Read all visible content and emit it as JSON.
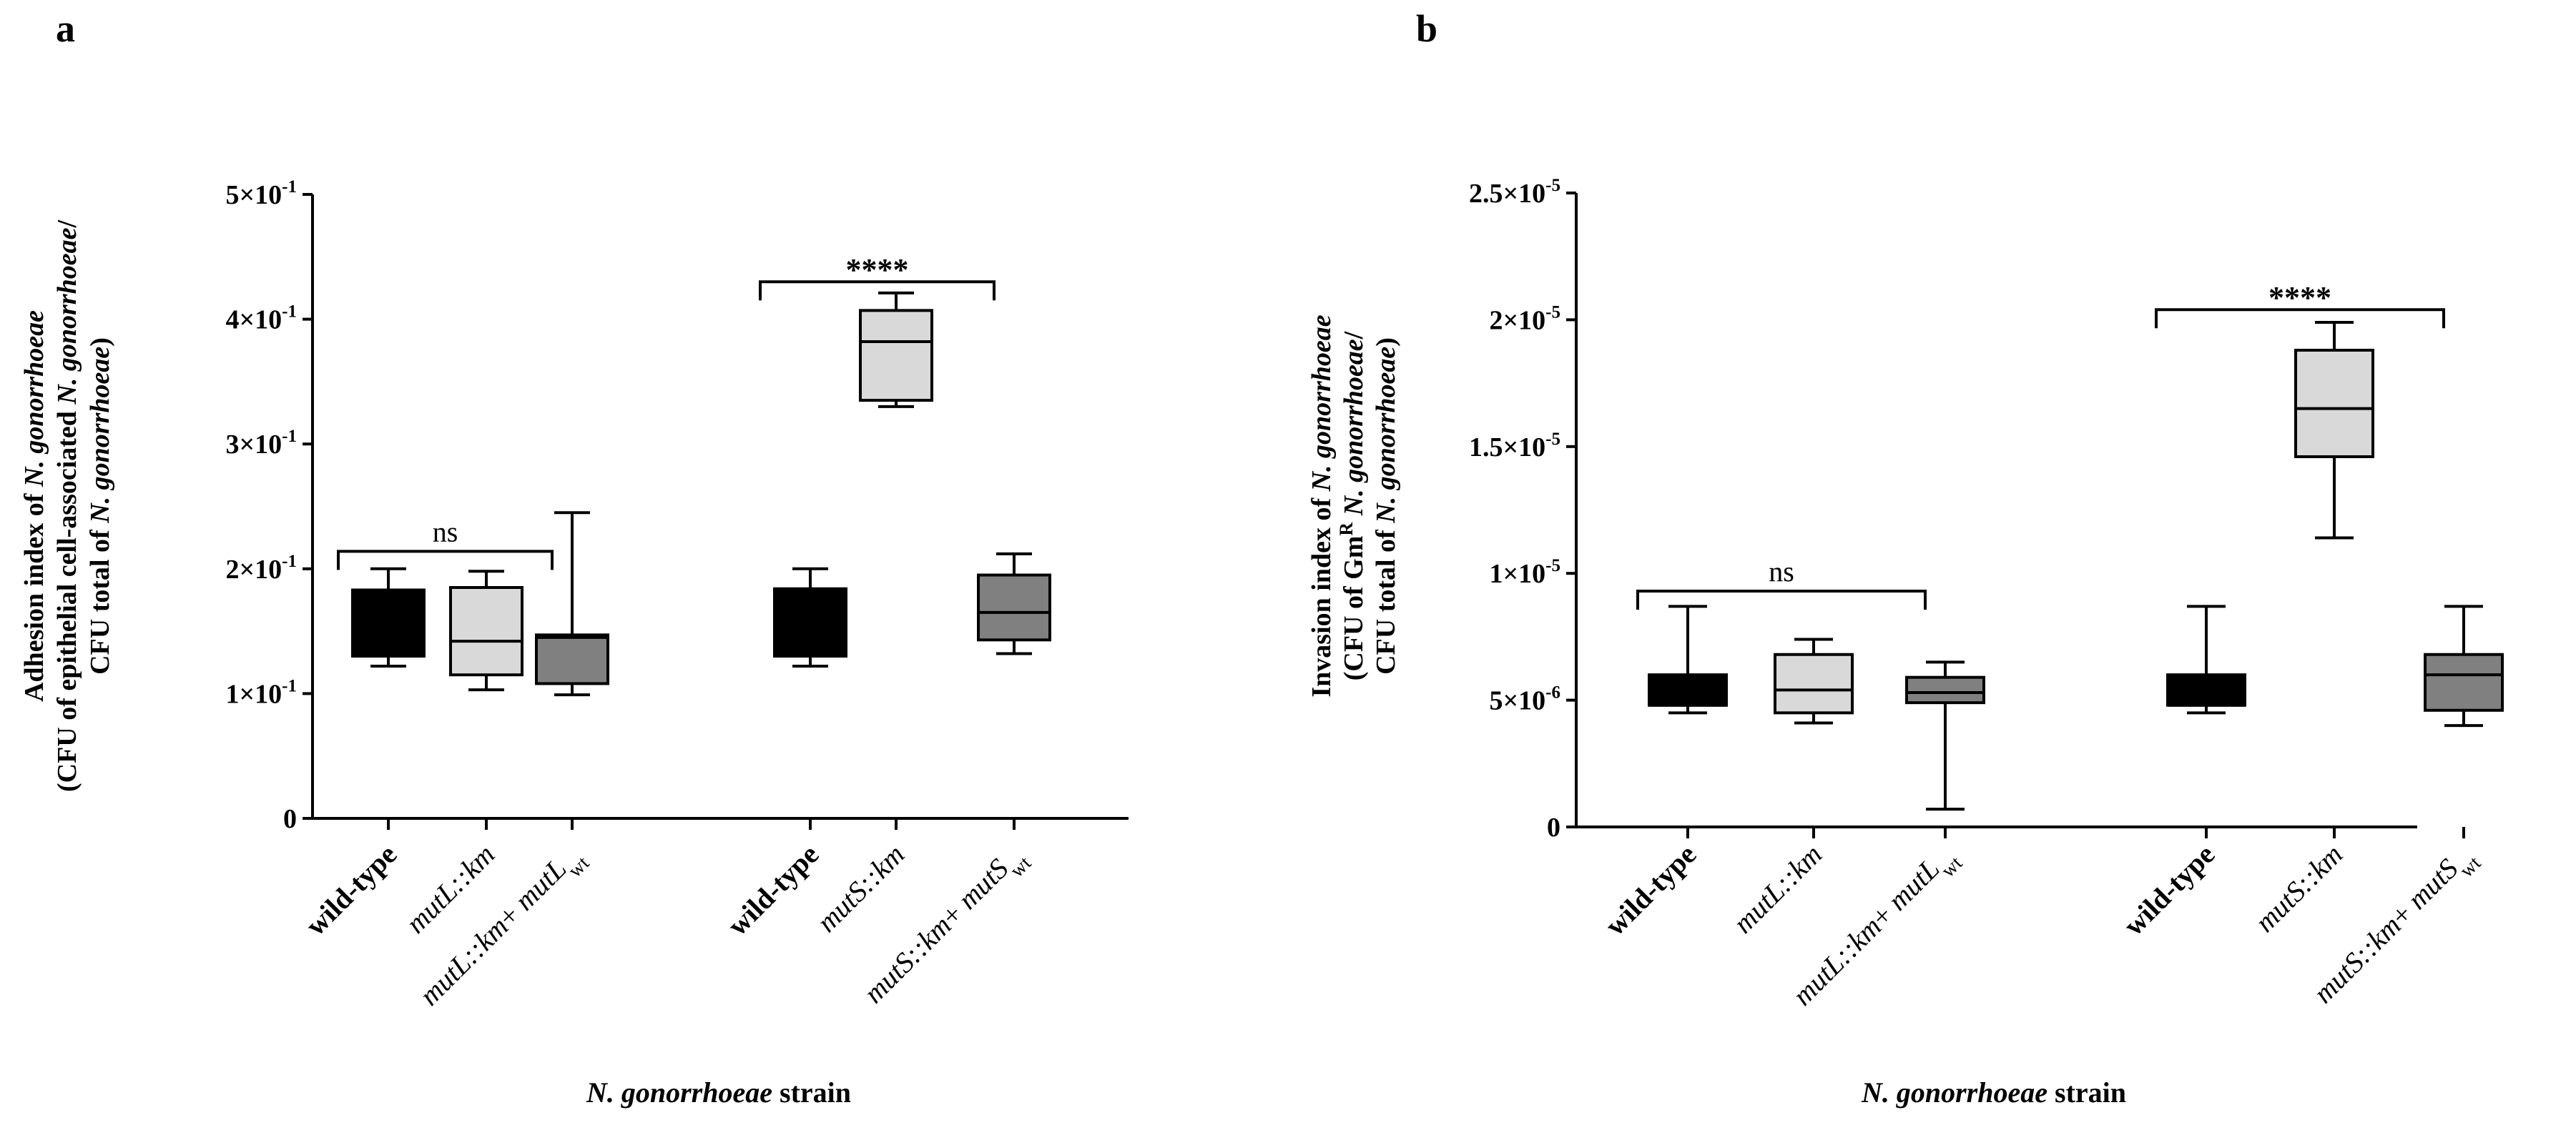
{
  "chart_data": [
    {
      "panel": "a",
      "type": "box",
      "ylabel_lines": [
        {
          "runs": [
            {
              "t": "Adhesion index of ",
              "i": false
            },
            {
              "t": "N. gonorrhoeae",
              "i": true
            }
          ]
        },
        {
          "runs": [
            {
              "t": "(CFU of epithelial cell-associated ",
              "i": false
            },
            {
              "t": "N. gonorrhoeae",
              "i": true
            },
            {
              "t": "/",
              "i": false
            }
          ]
        },
        {
          "runs": [
            {
              "t": "CFU total of ",
              "i": false
            },
            {
              "t": "N. gonorrhoeae",
              "i": true
            },
            {
              "t": ")",
              "i": false
            }
          ]
        }
      ],
      "xlabel": {
        "runs": [
          {
            "t": "N. gonorrhoeae",
            "i": true
          },
          {
            "t": " strain",
            "i": false
          }
        ]
      },
      "ylim": [
        0,
        0.5
      ],
      "yticks": [
        {
          "v": 0,
          "m": "0",
          "e": ""
        },
        {
          "v": 0.1,
          "m": "1×10",
          "e": "-1"
        },
        {
          "v": 0.2,
          "m": "2×10",
          "e": "-1"
        },
        {
          "v": 0.3,
          "m": "3×10",
          "e": "-1"
        },
        {
          "v": 0.4,
          "m": "4×10",
          "e": "-1"
        },
        {
          "v": 0.5,
          "m": "5×10",
          "e": "-1"
        }
      ],
      "categories": [
        {
          "runs": [
            {
              "t": "wild-type",
              "s": "b"
            }
          ]
        },
        {
          "runs": [
            {
              "t": "mutL::km",
              "s": "i"
            }
          ]
        },
        {
          "runs": [
            {
              "t": "mutL::km",
              "s": "i"
            },
            {
              "t": "+ ",
              "s": "n"
            },
            {
              "t": "mutL",
              "s": "i"
            },
            {
              "t": "wt",
              "s": "sub"
            }
          ]
        },
        {
          "runs": [
            {
              "t": "wild-type",
              "s": "b"
            }
          ]
        },
        {
          "runs": [
            {
              "t": "mutS::km",
              "s": "i"
            }
          ]
        },
        {
          "runs": [
            {
              "t": "mutS::km",
              "s": "i"
            },
            {
              "t": "+ ",
              "s": "n"
            },
            {
              "t": "mutS",
              "s": "i"
            },
            {
              "t": "wt",
              "s": "sub"
            }
          ]
        }
      ],
      "boxes": [
        {
          "min": 0.122,
          "q1": 0.13,
          "median": 0.13,
          "q3": 0.183,
          "max": 0.2,
          "color": "#000000"
        },
        {
          "min": 0.103,
          "q1": 0.115,
          "median": 0.142,
          "q3": 0.185,
          "max": 0.198,
          "color": "#d9d9d9"
        },
        {
          "min": 0.099,
          "q1": 0.108,
          "median": 0.145,
          "q3": 0.147,
          "max": 0.245,
          "color": "#808080"
        },
        {
          "min": 0.122,
          "q1": 0.13,
          "median": 0.13,
          "q3": 0.184,
          "max": 0.2,
          "color": "#000000"
        },
        {
          "min": 0.33,
          "q1": 0.335,
          "median": 0.382,
          "q3": 0.407,
          "max": 0.421,
          "color": "#d9d9d9"
        },
        {
          "min": 0.132,
          "q1": 0.143,
          "median": 0.165,
          "q3": 0.195,
          "max": 0.212,
          "color": "#808080"
        }
      ],
      "brackets": [
        {
          "from": 0,
          "to": 2,
          "value": 0.214,
          "label": "ns"
        },
        {
          "from": 3,
          "to": 5,
          "value": 0.43,
          "label": "****"
        }
      ]
    },
    {
      "panel": "b",
      "type": "box",
      "ylabel_lines": [
        {
          "runs": [
            {
              "t": "Invasion index of ",
              "i": false
            },
            {
              "t": "N. gonorrhoeae",
              "i": true
            }
          ]
        },
        {
          "runs": [
            {
              "t": "(CFU of Gm",
              "i": false
            },
            {
              "t": "R",
              "i": false,
              "sup": true
            },
            {
              "t": " ",
              "i": false
            },
            {
              "t": "N. gonorrhoeae",
              "i": true
            },
            {
              "t": "/",
              "i": false
            }
          ]
        },
        {
          "runs": [
            {
              "t": "CFU total of ",
              "i": false
            },
            {
              "t": "N. gonorrhoeae",
              "i": true
            },
            {
              "t": ")",
              "i": false
            }
          ]
        }
      ],
      "xlabel": {
        "runs": [
          {
            "t": "N. gonorrhoeae",
            "i": true
          },
          {
            "t": " strain",
            "i": false
          }
        ]
      },
      "ylim": [
        0,
        2.5e-05
      ],
      "yticks": [
        {
          "v": 0,
          "m": "0",
          "e": ""
        },
        {
          "v": 5e-06,
          "m": "5×10",
          "e": "-6"
        },
        {
          "v": 1e-05,
          "m": "1×10",
          "e": "-5"
        },
        {
          "v": 1.5e-05,
          "m": "1.5×10",
          "e": "-5"
        },
        {
          "v": 2e-05,
          "m": "2×10",
          "e": "-5"
        },
        {
          "v": 2.5e-05,
          "m": "2.5×10",
          "e": "-5"
        }
      ],
      "categories": [
        {
          "runs": [
            {
              "t": "wild-type",
              "s": "b"
            }
          ]
        },
        {
          "runs": [
            {
              "t": "mutL::km",
              "s": "i"
            }
          ]
        },
        {
          "runs": [
            {
              "t": "mutL::km",
              "s": "i"
            },
            {
              "t": "+ ",
              "s": "n"
            },
            {
              "t": "mutL",
              "s": "i"
            },
            {
              "t": "wt",
              "s": "sub"
            }
          ]
        },
        {
          "runs": [
            {
              "t": "wild-type",
              "s": "b"
            }
          ]
        },
        {
          "runs": [
            {
              "t": "mutS::km",
              "s": "i"
            }
          ]
        },
        {
          "runs": [
            {
              "t": "mutS::km",
              "s": "i"
            },
            {
              "t": "+ ",
              "s": "n"
            },
            {
              "t": "mutS",
              "s": "i"
            },
            {
              "t": "wt",
              "s": "sub"
            }
          ]
        }
      ],
      "boxes": [
        {
          "min": 4.5e-06,
          "q1": 4.8e-06,
          "median": 4.8e-06,
          "q3": 6e-06,
          "max": 8.7e-06,
          "color": "#000000"
        },
        {
          "min": 4.1e-06,
          "q1": 4.5e-06,
          "median": 5.4e-06,
          "q3": 6.8e-06,
          "max": 7.4e-06,
          "color": "#d9d9d9"
        },
        {
          "min": 7e-07,
          "q1": 4.9e-06,
          "median": 5.3e-06,
          "q3": 5.9e-06,
          "max": 6.5e-06,
          "color": "#808080"
        },
        {
          "min": 4.5e-06,
          "q1": 4.8e-06,
          "median": 4.8e-06,
          "q3": 6e-06,
          "max": 8.7e-06,
          "color": "#000000"
        },
        {
          "min": 1.14e-05,
          "q1": 1.46e-05,
          "median": 1.65e-05,
          "q3": 1.88e-05,
          "max": 1.99e-05,
          "color": "#d9d9d9"
        },
        {
          "min": 4e-06,
          "q1": 4.6e-06,
          "median": 6e-06,
          "q3": 6.8e-06,
          "max": 8.7e-06,
          "color": "#808080"
        }
      ],
      "brackets": [
        {
          "from": 0,
          "to": 2,
          "value": 9.3e-06,
          "label": "ns"
        },
        {
          "from": 3,
          "to": 5,
          "value": 2.04e-05,
          "label": "****"
        }
      ]
    }
  ]
}
